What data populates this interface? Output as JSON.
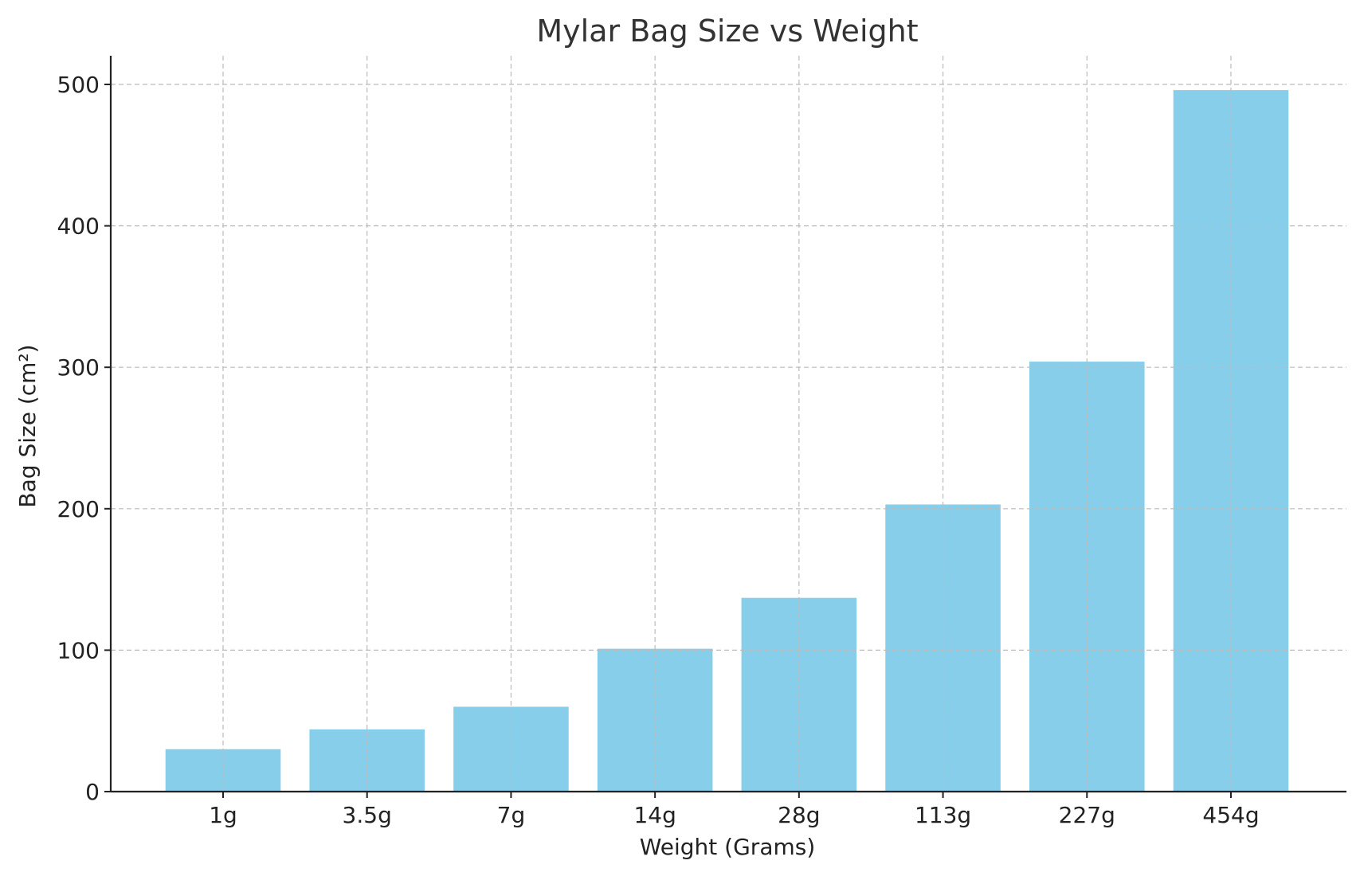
{
  "chart_data": {
    "type": "bar",
    "title": "Mylar Bag Size vs Weight",
    "xlabel": "Weight (Grams)",
    "ylabel": "Bag Size (cm²)",
    "categories": [
      "1g",
      "3.5g",
      "7g",
      "14g",
      "28g",
      "113g",
      "227g",
      "454g"
    ],
    "values": [
      30,
      44,
      60,
      101,
      137,
      203,
      304,
      496
    ],
    "ylim": [
      0,
      520
    ],
    "yticks": [
      0,
      100,
      200,
      300,
      400,
      500
    ],
    "grid": true,
    "bar_color": "#87CEEB"
  }
}
